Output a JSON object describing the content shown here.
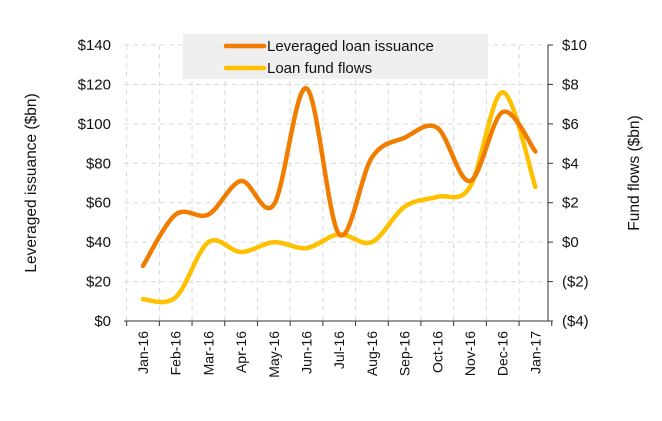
{
  "chart_data": {
    "type": "line",
    "categories": [
      "Jan-16",
      "Feb-16",
      "Mar-16",
      "Apr-16",
      "May-16",
      "Jun-16",
      "Jul-16",
      "Aug-16",
      "Sep-16",
      "Oct-16",
      "Nov-16",
      "Dec-16",
      "Jan-17"
    ],
    "series": [
      {
        "name": "Leveraged loan issuance",
        "axis": "left",
        "color": "#F07D00",
        "values": [
          28,
          54,
          54,
          71,
          59,
          118,
          44,
          83,
          93,
          98,
          71,
          106,
          86
        ]
      },
      {
        "name": "Loan fund flows",
        "axis": "right",
        "color": "#FFC000",
        "values": [
          -2.9,
          -2.8,
          0.0,
          -0.5,
          0.0,
          -0.3,
          0.4,
          0.0,
          1.8,
          2.3,
          2.8,
          7.6,
          2.8
        ]
      }
    ],
    "ylabel_left": "Leveraged issuance ($bn)",
    "ylabel_right": "Fund flows ($bn)",
    "ylim_left": [
      0,
      140
    ],
    "ylim_right": [
      -4,
      10
    ],
    "yticks_left": [
      "$0",
      "$20",
      "$40",
      "$60",
      "$80",
      "$100",
      "$120",
      "$140"
    ],
    "yticks_right": [
      "($4)",
      "($2)",
      "$0",
      "$2",
      "$4",
      "$6",
      "$8",
      "$10"
    ],
    "negative_tick_color": "#E8000B",
    "grid": true,
    "legend_position": "top-center"
  }
}
